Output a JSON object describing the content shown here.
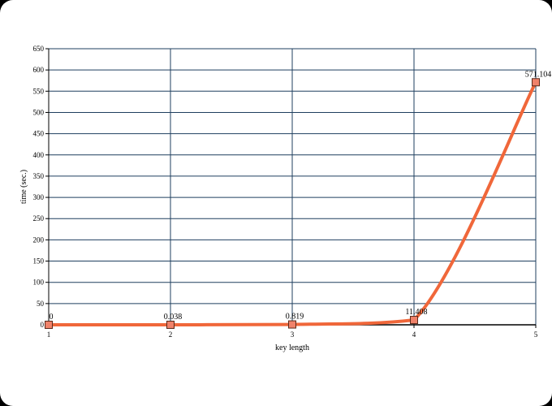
{
  "chart_data": {
    "type": "line",
    "title": "",
    "xlabel": "key length",
    "ylabel": "time (sec.)",
    "x": [
      1,
      2,
      3,
      4,
      5
    ],
    "series": [
      {
        "values": [
          0,
          0.038,
          0.819,
          11.408,
          571.104
        ],
        "labels": [
          "0",
          "0.038",
          "0.819",
          "11.408",
          "571.104"
        ],
        "color": "#f0673a"
      }
    ],
    "xlim": [
      1,
      5
    ],
    "ylim": [
      0,
      650
    ],
    "xticks": [
      1,
      2,
      3,
      4,
      5
    ],
    "yticks": [
      0,
      50,
      100,
      150,
      200,
      250,
      300,
      350,
      400,
      450,
      500,
      550,
      600,
      650
    ],
    "grid": true,
    "grid_color": "#1f3f5f",
    "marker": "square",
    "marker_fill": "#f0826a",
    "legend": "none"
  }
}
